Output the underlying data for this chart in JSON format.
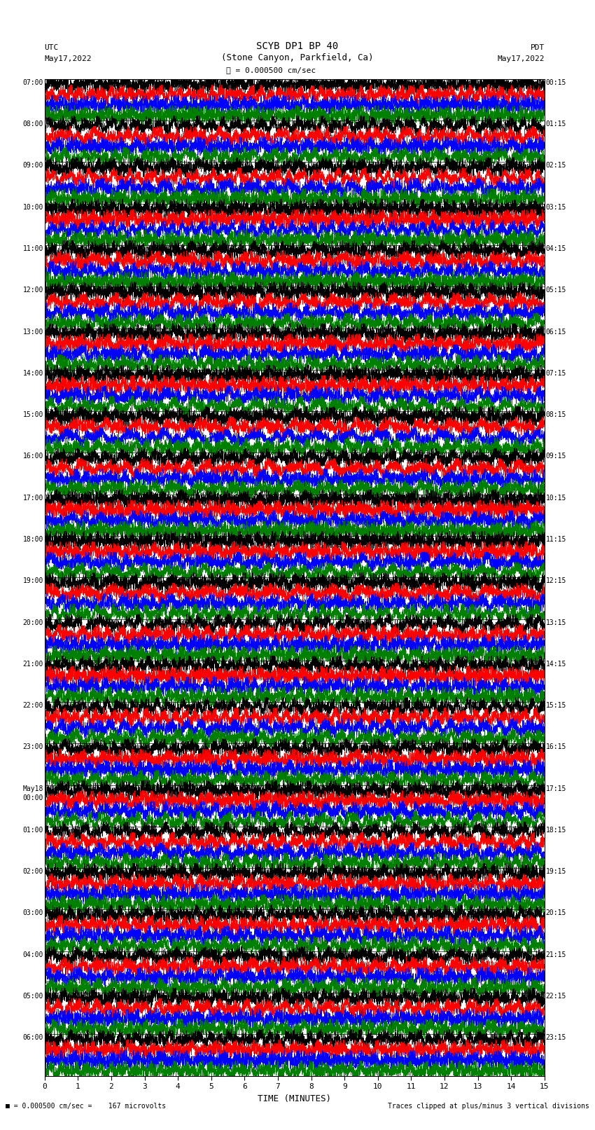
{
  "title_line1": "SCYB DP1 BP 40",
  "title_line2": "(Stone Canyon, Parkfield, Ca)",
  "scale_label": "= 0.000500 cm/sec",
  "bottom_left_text": "■ = 0.000500 cm/sec =    167 microvolts",
  "bottom_right_text": "Traces clipped at plus/minus 3 vertical divisions",
  "xlabel": "TIME (MINUTES)",
  "left_header_line1": "UTC",
  "left_header_line2": "May17,2022",
  "right_header_line1": "PDT",
  "right_header_line2": "May17,2022",
  "left_times_utc": [
    "07:00",
    "08:00",
    "09:00",
    "10:00",
    "11:00",
    "12:00",
    "13:00",
    "14:00",
    "15:00",
    "16:00",
    "17:00",
    "18:00",
    "19:00",
    "20:00",
    "21:00",
    "22:00",
    "23:00",
    "May18\n00:00",
    "01:00",
    "02:00",
    "03:00",
    "04:00",
    "05:00",
    "06:00"
  ],
  "right_times_pdt": [
    "00:15",
    "01:15",
    "02:15",
    "03:15",
    "04:15",
    "05:15",
    "06:15",
    "07:15",
    "08:15",
    "09:15",
    "10:15",
    "11:15",
    "12:15",
    "13:15",
    "14:15",
    "15:15",
    "16:15",
    "17:15",
    "18:15",
    "19:15",
    "20:15",
    "21:15",
    "22:15",
    "23:15"
  ],
  "n_rows": 24,
  "traces_per_row": 4,
  "colors": [
    "black",
    "red",
    "blue",
    "green"
  ],
  "bg_color": "white",
  "minutes_per_row": 15,
  "n_points": 9000,
  "grid_color": "#aaaaaa",
  "trace_amplitude": 0.38
}
